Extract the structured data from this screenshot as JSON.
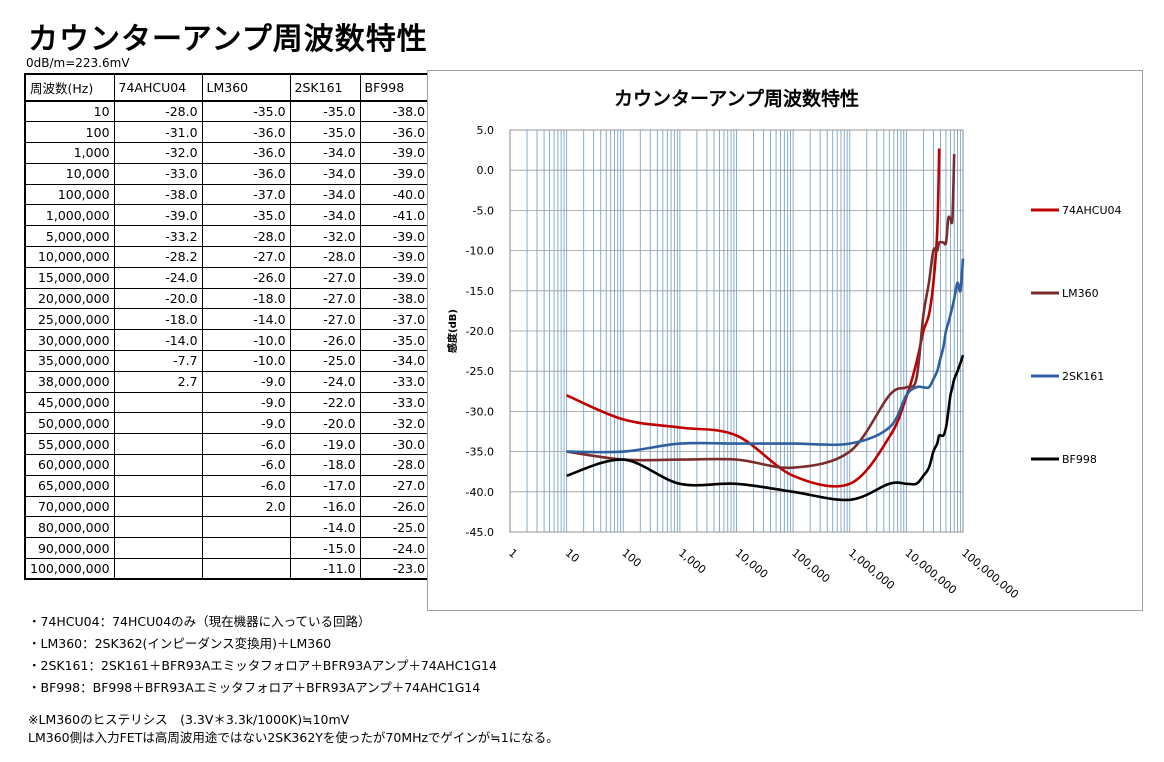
{
  "page": {
    "title": "カウンターアンプ周波数特性",
    "unit_note": "0dB/m=223.6mV"
  },
  "table": {
    "headers": [
      "周波数(Hz)",
      "74AHCU04",
      "LM360",
      "2SK161",
      "BF998"
    ],
    "rows": [
      [
        "10",
        "-28.0",
        "-35.0",
        "-35.0",
        "-38.0"
      ],
      [
        "100",
        "-31.0",
        "-36.0",
        "-35.0",
        "-36.0"
      ],
      [
        "1,000",
        "-32.0",
        "-36.0",
        "-34.0",
        "-39.0"
      ],
      [
        "10,000",
        "-33.0",
        "-36.0",
        "-34.0",
        "-39.0"
      ],
      [
        "100,000",
        "-38.0",
        "-37.0",
        "-34.0",
        "-40.0"
      ],
      [
        "1,000,000",
        "-39.0",
        "-35.0",
        "-34.0",
        "-41.0"
      ],
      [
        "5,000,000",
        "-33.2",
        "-28.0",
        "-32.0",
        "-39.0"
      ],
      [
        "10,000,000",
        "-28.2",
        "-27.0",
        "-28.0",
        "-39.0"
      ],
      [
        "15,000,000",
        "-24.0",
        "-26.0",
        "-27.0",
        "-39.0"
      ],
      [
        "20,000,000",
        "-20.0",
        "-18.0",
        "-27.0",
        "-38.0"
      ],
      [
        "25,000,000",
        "-18.0",
        "-14.0",
        "-27.0",
        "-37.0"
      ],
      [
        "30,000,000",
        "-14.0",
        "-10.0",
        "-26.0",
        "-35.0"
      ],
      [
        "35,000,000",
        "-7.7",
        "-10.0",
        "-25.0",
        "-34.0"
      ],
      [
        "38,000,000",
        "2.7",
        "-9.0",
        "-24.0",
        "-33.0"
      ],
      [
        "45,000,000",
        "",
        "-9.0",
        "-22.0",
        "-33.0"
      ],
      [
        "50,000,000",
        "",
        "-9.0",
        "-20.0",
        "-32.0"
      ],
      [
        "55,000,000",
        "",
        "-6.0",
        "-19.0",
        "-30.0"
      ],
      [
        "60,000,000",
        "",
        "-6.0",
        "-18.0",
        "-28.0"
      ],
      [
        "65,000,000",
        "",
        "-6.0",
        "-17.0",
        "-27.0"
      ],
      [
        "70,000,000",
        "",
        "2.0",
        "-16.0",
        "-26.0"
      ],
      [
        "80,000,000",
        "",
        "",
        "-14.0",
        "-25.0"
      ],
      [
        "90,000,000",
        "",
        "",
        "-15.0",
        "-24.0"
      ],
      [
        "100,000,000",
        "",
        "",
        "-11.0",
        "-23.0"
      ]
    ]
  },
  "notes": [
    "・74HCU04：74HCU04のみ（現在機器に入っている回路）",
    "・LM360：2SK362(インピーダンス変換用)＋LM360",
    "・2SK161：2SK161＋BFR93Aエミッタフォロア＋BFR93Aアンプ＋74AHC1G14",
    "・BF998：BF998＋BFR93Aエミッタフォロア＋BFR93Aアンプ＋74AHC1G14",
    "※LM360のヒステリシス　(3.3V＊3.3k/1000K)≒10mV",
    "LM360側は入力FETは高周波用途ではない2SK362Yを使ったが70MHzでゲインが≒1になる。"
  ],
  "chart_data": {
    "type": "line",
    "title": "カウンターアンプ周波数特性",
    "xlabel": "",
    "ylabel": "感度(dB)",
    "xscale": "log",
    "xlim": [
      1,
      100000000
    ],
    "ylim": [
      -45,
      5
    ],
    "ytick_step": 5,
    "xtick_labels": [
      "1",
      "10",
      "100",
      "1,000",
      "10,000",
      "100,000",
      "1,000,000",
      "10,000,000",
      "100,000,000"
    ],
    "ytick_labels": [
      "5.0",
      "0.0",
      "-5.0",
      "-10.0",
      "-15.0",
      "-20.0",
      "-25.0",
      "-30.0",
      "-35.0",
      "-40.0",
      "-45.0"
    ],
    "grid": true,
    "legend_position": "right",
    "x": [
      10,
      100,
      1000,
      10000,
      100000,
      1000000,
      5000000,
      10000000,
      15000000,
      20000000,
      25000000,
      30000000,
      35000000,
      38000000,
      45000000,
      50000000,
      55000000,
      60000000,
      65000000,
      70000000,
      80000000,
      90000000,
      100000000
    ],
    "series": [
      {
        "name": "74AHCU04",
        "color": "#c00000",
        "values": [
          -28.0,
          -31.0,
          -32.0,
          -33.0,
          -38.0,
          -39.0,
          -33.2,
          -28.2,
          -24.0,
          -20.0,
          -18.0,
          -14.0,
          -7.7,
          2.7,
          null,
          null,
          null,
          null,
          null,
          null,
          null,
          null,
          null
        ]
      },
      {
        "name": "LM360",
        "color": "#7b2c2c",
        "values": [
          -35.0,
          -36.0,
          -36.0,
          -36.0,
          -37.0,
          -35.0,
          -28.0,
          -27.0,
          -26.0,
          -18.0,
          -14.0,
          -10.0,
          -10.0,
          -9.0,
          -9.0,
          -9.0,
          -6.0,
          -6.0,
          -6.0,
          2.0,
          null,
          null,
          null
        ]
      },
      {
        "name": "2SK161",
        "color": "#2e5f9e",
        "values": [
          -35.0,
          -35.0,
          -34.0,
          -34.0,
          -34.0,
          -34.0,
          -32.0,
          -28.0,
          -27.0,
          -27.0,
          -27.0,
          -26.0,
          -25.0,
          -24.0,
          -22.0,
          -20.0,
          -19.0,
          -18.0,
          -17.0,
          -16.0,
          -14.0,
          -15.0,
          -11.0
        ]
      },
      {
        "name": "BF998",
        "color": "#000000",
        "values": [
          -38.0,
          -36.0,
          -39.0,
          -39.0,
          -40.0,
          -41.0,
          -39.0,
          -39.0,
          -39.0,
          -38.0,
          -37.0,
          -35.0,
          -34.0,
          -33.0,
          -33.0,
          -32.0,
          -30.0,
          -28.0,
          -27.0,
          -26.0,
          -25.0,
          -24.0,
          -23.0
        ]
      }
    ]
  }
}
